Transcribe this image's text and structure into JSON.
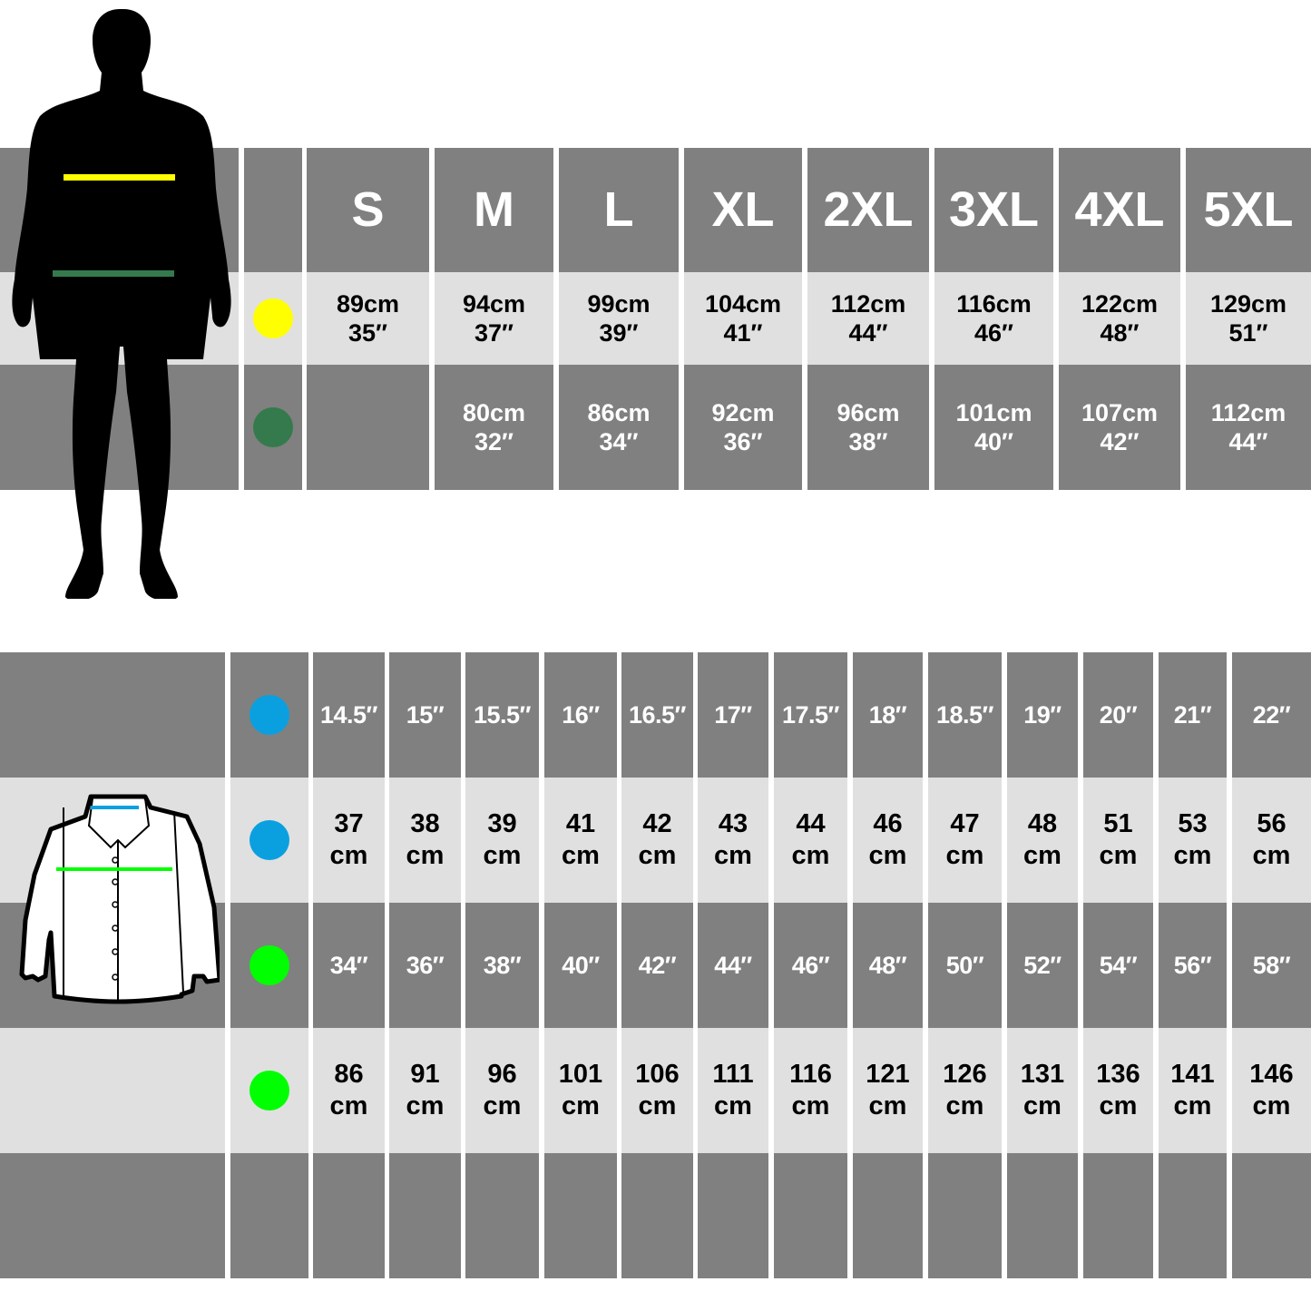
{
  "top_table": {
    "sizes": [
      "S",
      "M",
      "L",
      "XL",
      "2XL",
      "3XL",
      "4XL",
      "5XL"
    ],
    "rows": [
      {
        "marker_color": "#ffff00",
        "marker": "chest-marker",
        "values": [
          [
            "89cm",
            "35″"
          ],
          [
            "94cm",
            "37″"
          ],
          [
            "99cm",
            "39″"
          ],
          [
            "104cm",
            "41″"
          ],
          [
            "112cm",
            "44″"
          ],
          [
            "116cm",
            "46″"
          ],
          [
            "122cm",
            "48″"
          ],
          [
            "129cm",
            "51″"
          ]
        ]
      },
      {
        "marker_color": "#357a4c",
        "marker": "waist-marker",
        "values": [
          [
            "",
            ""
          ],
          [
            "80cm",
            "32″"
          ],
          [
            "86cm",
            "34″"
          ],
          [
            "92cm",
            "36″"
          ],
          [
            "96cm",
            "38″"
          ],
          [
            "101cm",
            "40″"
          ],
          [
            "107cm",
            "42″"
          ],
          [
            "112cm",
            "44″"
          ]
        ]
      }
    ]
  },
  "bottom_table": {
    "rows": [
      {
        "marker_color": "#0aa0e0",
        "marker": "collar-inch-marker",
        "values": [
          [
            "14.5″"
          ],
          [
            "15″"
          ],
          [
            "15.5″"
          ],
          [
            "16″"
          ],
          [
            "16.5″"
          ],
          [
            "17″"
          ],
          [
            "17.5″"
          ],
          [
            "18″"
          ],
          [
            "18.5″"
          ],
          [
            "19″"
          ],
          [
            "20″"
          ],
          [
            "21″"
          ],
          [
            "22″"
          ]
        ]
      },
      {
        "marker_color": "#0aa0e0",
        "marker": "collar-cm-marker",
        "values": [
          [
            "37",
            "cm"
          ],
          [
            "38",
            "cm"
          ],
          [
            "39",
            "cm"
          ],
          [
            "41",
            "cm"
          ],
          [
            "42",
            "cm"
          ],
          [
            "43",
            "cm"
          ],
          [
            "44",
            "cm"
          ],
          [
            "46",
            "cm"
          ],
          [
            "47",
            "cm"
          ],
          [
            "48",
            "cm"
          ],
          [
            "51",
            "cm"
          ],
          [
            "53",
            "cm"
          ],
          [
            "56",
            "cm"
          ]
        ]
      },
      {
        "marker_color": "#00ff00",
        "marker": "chest-inch-marker",
        "values": [
          [
            "34″"
          ],
          [
            "36″"
          ],
          [
            "38″"
          ],
          [
            "40″"
          ],
          [
            "42″"
          ],
          [
            "44″"
          ],
          [
            "46″"
          ],
          [
            "48″"
          ],
          [
            "50″"
          ],
          [
            "52″"
          ],
          [
            "54″"
          ],
          [
            "56″"
          ],
          [
            "58″"
          ]
        ]
      },
      {
        "marker_color": "#00ff00",
        "marker": "chest-cm-marker",
        "values": [
          [
            "86",
            "cm"
          ],
          [
            "91",
            "cm"
          ],
          [
            "96",
            "cm"
          ],
          [
            "101",
            "cm"
          ],
          [
            "106",
            "cm"
          ],
          [
            "111",
            "cm"
          ],
          [
            "116",
            "cm"
          ],
          [
            "121",
            "cm"
          ],
          [
            "126",
            "cm"
          ],
          [
            "131",
            "cm"
          ],
          [
            "136",
            "cm"
          ],
          [
            "141",
            "cm"
          ],
          [
            "146",
            "cm"
          ]
        ]
      },
      {
        "marker_color": null,
        "marker": "empty-row",
        "values": [
          [],
          [],
          [],
          [],
          [],
          [],
          [],
          [],
          [],
          [],
          [],
          [],
          []
        ]
      }
    ]
  },
  "colors": {
    "dark": "#808080",
    "light": "#e0e0e0",
    "chest_line": "#ffff00",
    "waist_line": "#357a4c",
    "collar_line": "#0aa0e0",
    "shirt_chest_line": "#00ff00"
  }
}
